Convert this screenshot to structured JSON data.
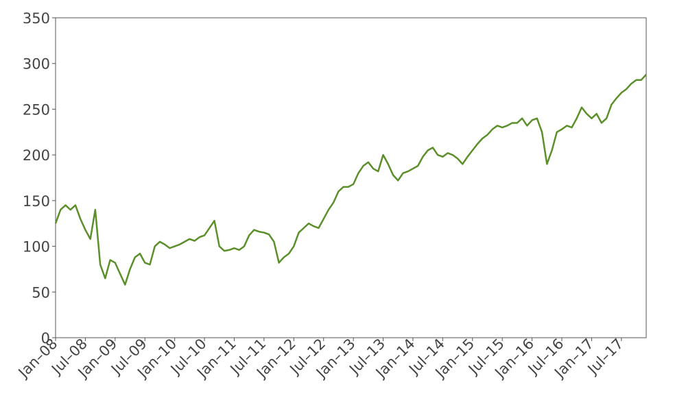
{
  "chart_data": {
    "type": "line",
    "x": [
      "2008-01",
      "2008-02",
      "2008-03",
      "2008-04",
      "2008-05",
      "2008-06",
      "2008-07",
      "2008-08",
      "2008-09",
      "2008-10",
      "2008-11",
      "2008-12",
      "2009-01",
      "2009-02",
      "2009-03",
      "2009-04",
      "2009-05",
      "2009-06",
      "2009-07",
      "2009-08",
      "2009-09",
      "2009-10",
      "2009-11",
      "2009-12",
      "2010-01",
      "2010-02",
      "2010-03",
      "2010-04",
      "2010-05",
      "2010-06",
      "2010-07",
      "2010-08",
      "2010-09",
      "2010-10",
      "2010-11",
      "2010-12",
      "2011-01",
      "2011-02",
      "2011-03",
      "2011-04",
      "2011-05",
      "2011-06",
      "2011-07",
      "2011-08",
      "2011-09",
      "2011-10",
      "2011-11",
      "2011-12",
      "2012-01",
      "2012-02",
      "2012-03",
      "2012-04",
      "2012-05",
      "2012-06",
      "2012-07",
      "2012-08",
      "2012-09",
      "2012-10",
      "2012-11",
      "2012-12",
      "2013-01",
      "2013-02",
      "2013-03",
      "2013-04",
      "2013-05",
      "2013-06",
      "2013-07",
      "2013-08",
      "2013-09",
      "2013-10",
      "2013-11",
      "2013-12",
      "2014-01",
      "2014-02",
      "2014-03",
      "2014-04",
      "2014-05",
      "2014-06",
      "2014-07",
      "2014-08",
      "2014-09",
      "2014-10",
      "2014-11",
      "2014-12",
      "2015-01",
      "2015-02",
      "2015-03",
      "2015-04",
      "2015-05",
      "2015-06",
      "2015-07",
      "2015-08",
      "2015-09",
      "2015-10",
      "2015-11",
      "2015-12",
      "2016-01",
      "2016-02",
      "2016-03",
      "2016-04",
      "2016-05",
      "2016-06",
      "2016-07",
      "2016-08",
      "2016-09",
      "2016-10",
      "2016-11",
      "2016-12",
      "2017-01",
      "2017-02",
      "2017-03",
      "2017-04",
      "2017-05",
      "2017-06",
      "2017-07",
      "2017-08",
      "2017-09",
      "2017-10",
      "2017-11",
      "2017-12"
    ],
    "series": [
      {
        "color": "#5a8f29",
        "values": [
          125,
          140,
          145,
          140,
          145,
          130,
          118,
          108,
          140,
          80,
          65,
          85,
          82,
          70,
          58,
          75,
          88,
          92,
          82,
          80,
          100,
          105,
          102,
          98,
          100,
          102,
          105,
          108,
          106,
          110,
          112,
          120,
          128,
          100,
          95,
          96,
          98,
          96,
          100,
          112,
          118,
          116,
          115,
          113,
          105,
          82,
          88,
          92,
          100,
          115,
          120,
          125,
          122,
          120,
          130,
          140,
          148,
          160,
          165,
          165,
          168,
          180,
          188,
          192,
          185,
          182,
          200,
          190,
          178,
          172,
          180,
          182,
          185,
          188,
          198,
          205,
          208,
          200,
          198,
          202,
          200,
          196,
          190,
          198,
          205,
          212,
          218,
          222,
          228,
          232,
          230,
          232,
          235,
          235,
          240,
          232,
          238,
          240,
          225,
          190,
          205,
          225,
          228,
          232,
          230,
          240,
          252,
          245,
          240,
          245,
          235,
          240,
          255,
          262,
          268,
          272,
          278,
          282,
          282,
          288
        ]
      }
    ],
    "xlim": [
      "2008-01",
      "2017-12"
    ],
    "xticks": [
      {
        "value": "2008-01",
        "label": "Jan–08"
      },
      {
        "value": "2008-07",
        "label": "Jul–08"
      },
      {
        "value": "2009-01",
        "label": "Jan–09"
      },
      {
        "value": "2009-07",
        "label": "Jul–09"
      },
      {
        "value": "2010-01",
        "label": "Jan–10"
      },
      {
        "value": "2010-07",
        "label": "Jul–10"
      },
      {
        "value": "2011-01",
        "label": "Jan–11"
      },
      {
        "value": "2011-07",
        "label": "Jul–11"
      },
      {
        "value": "2012-01",
        "label": "Jan–12"
      },
      {
        "value": "2012-07",
        "label": "Jul–12"
      },
      {
        "value": "2013-01",
        "label": "Jan–13"
      },
      {
        "value": "2013-07",
        "label": "Jul–13"
      },
      {
        "value": "2014-01",
        "label": "Jan–14"
      },
      {
        "value": "2014-07",
        "label": "Jul–14"
      },
      {
        "value": "2015-01",
        "label": "Jan–15"
      },
      {
        "value": "2015-07",
        "label": "Jul–15"
      },
      {
        "value": "2016-01",
        "label": "Jan–16"
      },
      {
        "value": "2016-07",
        "label": "Jul–16"
      },
      {
        "value": "2017-01",
        "label": "Jan–17"
      },
      {
        "value": "2017-07",
        "label": "Jul–17"
      }
    ],
    "ylim": [
      0,
      350
    ],
    "yticks": [
      0,
      50,
      100,
      150,
      200,
      250,
      300,
      350
    ]
  }
}
